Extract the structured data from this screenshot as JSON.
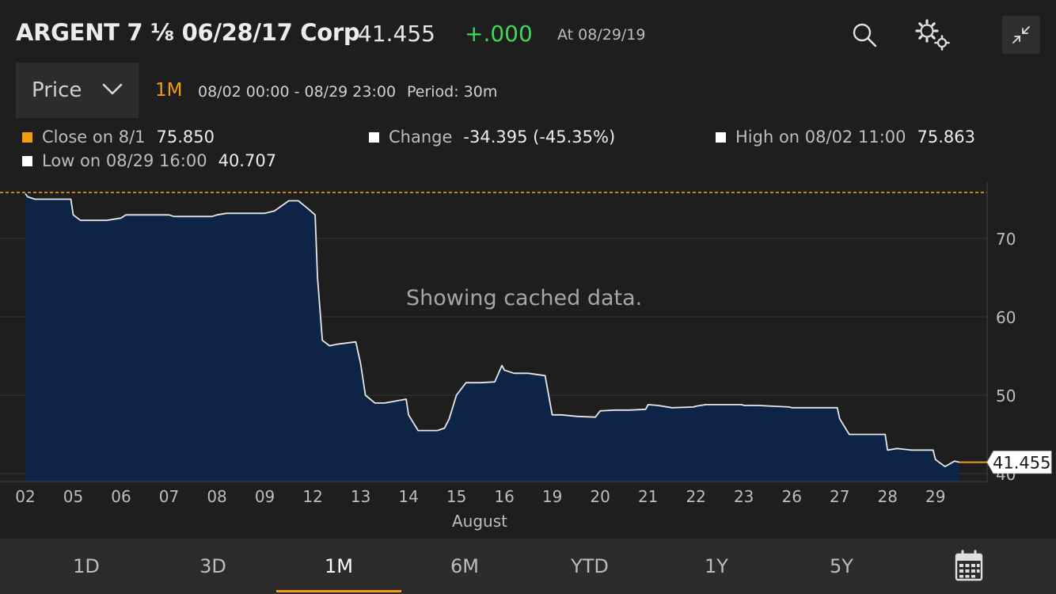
{
  "header": {
    "title": "ARGENT 7 ⅛ 06/28/17 Corp",
    "price": "41.455",
    "change": "+.000",
    "as_of": "At 08/29/19",
    "icons": [
      "search-icon",
      "settings-gears-icon",
      "minimize-icon"
    ]
  },
  "toolbar": {
    "field_select": "Price",
    "range_label": "1M",
    "date_range": "08/02 00:00 - 08/29 23:00",
    "period": "Period: 30m"
  },
  "legend": {
    "close": {
      "label": "Close on 8/1",
      "value": "75.850",
      "color": "#f39c12"
    },
    "change": {
      "label": "Change",
      "value": "-34.395 (-45.35%)",
      "color": "#ffffff"
    },
    "high": {
      "label": "High on 08/02 11:00",
      "value": "75.863",
      "color": "#ffffff"
    },
    "low": {
      "label": "Low on 08/29 16:00",
      "value": "40.707",
      "color": "#ffffff"
    }
  },
  "message": "Showing cached data.",
  "chart_data": {
    "type": "area",
    "xlabel": "August",
    "ylabel": "",
    "ylim": [
      39,
      76
    ],
    "y_ticks": [
      "70",
      "60",
      "50",
      "40"
    ],
    "y_tick_values": [
      70,
      60,
      50,
      40
    ],
    "categories": [
      "02",
      "05",
      "06",
      "07",
      "08",
      "09",
      "12",
      "13",
      "14",
      "15",
      "16",
      "19",
      "20",
      "21",
      "22",
      "23",
      "26",
      "27",
      "28",
      "29"
    ],
    "reference_line": {
      "label": "Close on 8/1",
      "value": 75.85,
      "color": "#f39c12"
    },
    "last_value": "41.455",
    "last_value_num": 41.455,
    "fill_color": "#0d2447",
    "line_color": "#e8e8e8",
    "series": [
      {
        "x": [
          0.0,
          0.05,
          0.2,
          0.4,
          0.6,
          0.95,
          1.0,
          1.15,
          1.4,
          1.7,
          2.0,
          2.1,
          2.5,
          2.9,
          3.0,
          3.1,
          3.5,
          3.9,
          4.0,
          4.2,
          4.5,
          4.9,
          5.0,
          5.2,
          5.5,
          5.7,
          5.9,
          6.05,
          6.1,
          6.2,
          6.35,
          6.5,
          6.9,
          7.0,
          7.1,
          7.3,
          7.5,
          7.95,
          8.0,
          8.2,
          8.4,
          8.6,
          8.75,
          8.85,
          9.0,
          9.2,
          9.5,
          9.8,
          9.95,
          10.0,
          10.1,
          10.2,
          10.5,
          10.85,
          11.0,
          11.2,
          11.5,
          11.9,
          12.0,
          12.3,
          12.6,
          12.95,
          13.0,
          13.2,
          13.5,
          13.95,
          14.0,
          14.2,
          14.6,
          14.95,
          15.0,
          15.3,
          15.6,
          15.95,
          16.0,
          16.3,
          16.6,
          16.95,
          17.0,
          17.2,
          17.5,
          17.95,
          18.0,
          18.2,
          18.5,
          18.95,
          19.0,
          19.2,
          19.4,
          19.5
        ],
        "y": [
          75.7,
          75.3,
          75.0,
          75.0,
          75.0,
          75.0,
          73.0,
          72.3,
          72.3,
          72.3,
          72.6,
          73.0,
          73.0,
          73.0,
          73.0,
          72.8,
          72.8,
          72.8,
          73.0,
          73.2,
          73.2,
          73.2,
          73.2,
          73.5,
          74.8,
          74.8,
          73.8,
          73.0,
          65.0,
          57.0,
          56.3,
          56.5,
          56.8,
          54.0,
          50.0,
          49.0,
          49.0,
          49.5,
          47.5,
          45.5,
          45.5,
          45.5,
          45.8,
          47.0,
          50.0,
          51.6,
          51.6,
          51.7,
          53.8,
          53.2,
          53.0,
          52.8,
          52.8,
          52.5,
          47.5,
          47.5,
          47.3,
          47.2,
          48.0,
          48.1,
          48.1,
          48.2,
          48.8,
          48.7,
          48.4,
          48.5,
          48.6,
          48.8,
          48.8,
          48.8,
          48.7,
          48.7,
          48.6,
          48.5,
          48.4,
          48.4,
          48.4,
          48.4,
          47.0,
          45.0,
          45.0,
          45.0,
          43.0,
          43.2,
          43.0,
          43.0,
          41.8,
          40.9,
          41.6,
          41.455
        ]
      }
    ]
  },
  "time_tabs": [
    "1D",
    "3D",
    "1M",
    "6M",
    "YTD",
    "1Y",
    "5Y"
  ],
  "active_tab": "1M"
}
